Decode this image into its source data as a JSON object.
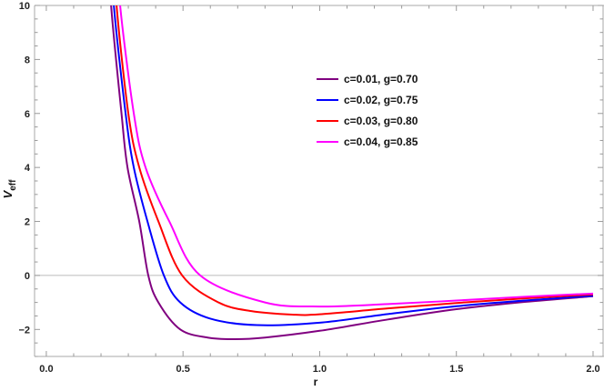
{
  "chart_data": {
    "type": "line",
    "title": "",
    "xlabel": "r",
    "ylabel": "V",
    "ylabel_subscript": "eff",
    "xlim": [
      -0.043,
      2.04
    ],
    "ylim": [
      -3,
      10
    ],
    "x_ticks": [
      0.0,
      0.5,
      1.0,
      1.5,
      2.0
    ],
    "x_tick_labels": [
      "0.0",
      "0.5",
      "1.0",
      "1.5",
      "2.0"
    ],
    "y_ticks": [
      -2,
      0,
      2,
      4,
      6,
      8,
      10
    ],
    "y_tick_labels": [
      "−2",
      "0",
      "2",
      "4",
      "6",
      "8",
      "10"
    ],
    "grid": false,
    "zero_line": true,
    "legend_position": "top-right",
    "series": [
      {
        "name": "c=0.01, g=0.70",
        "color": "#800080",
        "points": [
          [
            0.237,
            10
          ],
          [
            0.275,
            6
          ],
          [
            0.297,
            4
          ],
          [
            0.34,
            2
          ],
          [
            0.373,
            0
          ],
          [
            0.41,
            -1
          ],
          [
            0.49,
            -2
          ],
          [
            0.59,
            -2.3
          ],
          [
            0.69,
            -2.36
          ],
          [
            0.8,
            -2.3
          ],
          [
            1.0,
            -2.05
          ],
          [
            1.25,
            -1.63
          ],
          [
            1.5,
            -1.25
          ],
          [
            1.75,
            -0.98
          ],
          [
            2.0,
            -0.77
          ]
        ]
      },
      {
        "name": "c=0.02, g=0.75",
        "color": "#0000ff",
        "points": [
          [
            0.247,
            10
          ],
          [
            0.29,
            6
          ],
          [
            0.32,
            4
          ],
          [
            0.37,
            2
          ],
          [
            0.43,
            0
          ],
          [
            0.49,
            -1
          ],
          [
            0.6,
            -1.6
          ],
          [
            0.77,
            -1.84
          ],
          [
            1.0,
            -1.75
          ],
          [
            1.25,
            -1.43
          ],
          [
            1.5,
            -1.14
          ],
          [
            1.75,
            -0.93
          ],
          [
            2.0,
            -0.75
          ]
        ]
      },
      {
        "name": "c=0.03, g=0.80",
        "color": "#ff0000",
        "points": [
          [
            0.257,
            10
          ],
          [
            0.3,
            6
          ],
          [
            0.34,
            4
          ],
          [
            0.41,
            2
          ],
          [
            0.497,
            0
          ],
          [
            0.63,
            -1
          ],
          [
            0.75,
            -1.32
          ],
          [
            0.9,
            -1.45
          ],
          [
            1.0,
            -1.44
          ],
          [
            1.25,
            -1.22
          ],
          [
            1.5,
            -1.02
          ],
          [
            1.75,
            -0.85
          ],
          [
            2.0,
            -0.7
          ]
        ]
      },
      {
        "name": "c=0.04, g=0.85",
        "color": "#ff00ff",
        "points": [
          [
            0.27,
            10
          ],
          [
            0.32,
            6
          ],
          [
            0.363,
            4
          ],
          [
            0.45,
            2
          ],
          [
            0.563,
            0
          ],
          [
            0.8,
            -1
          ],
          [
            1.0,
            -1.15
          ],
          [
            1.25,
            -1.06
          ],
          [
            1.5,
            -0.93
          ],
          [
            1.75,
            -0.79
          ],
          [
            2.0,
            -0.67
          ]
        ]
      }
    ]
  }
}
